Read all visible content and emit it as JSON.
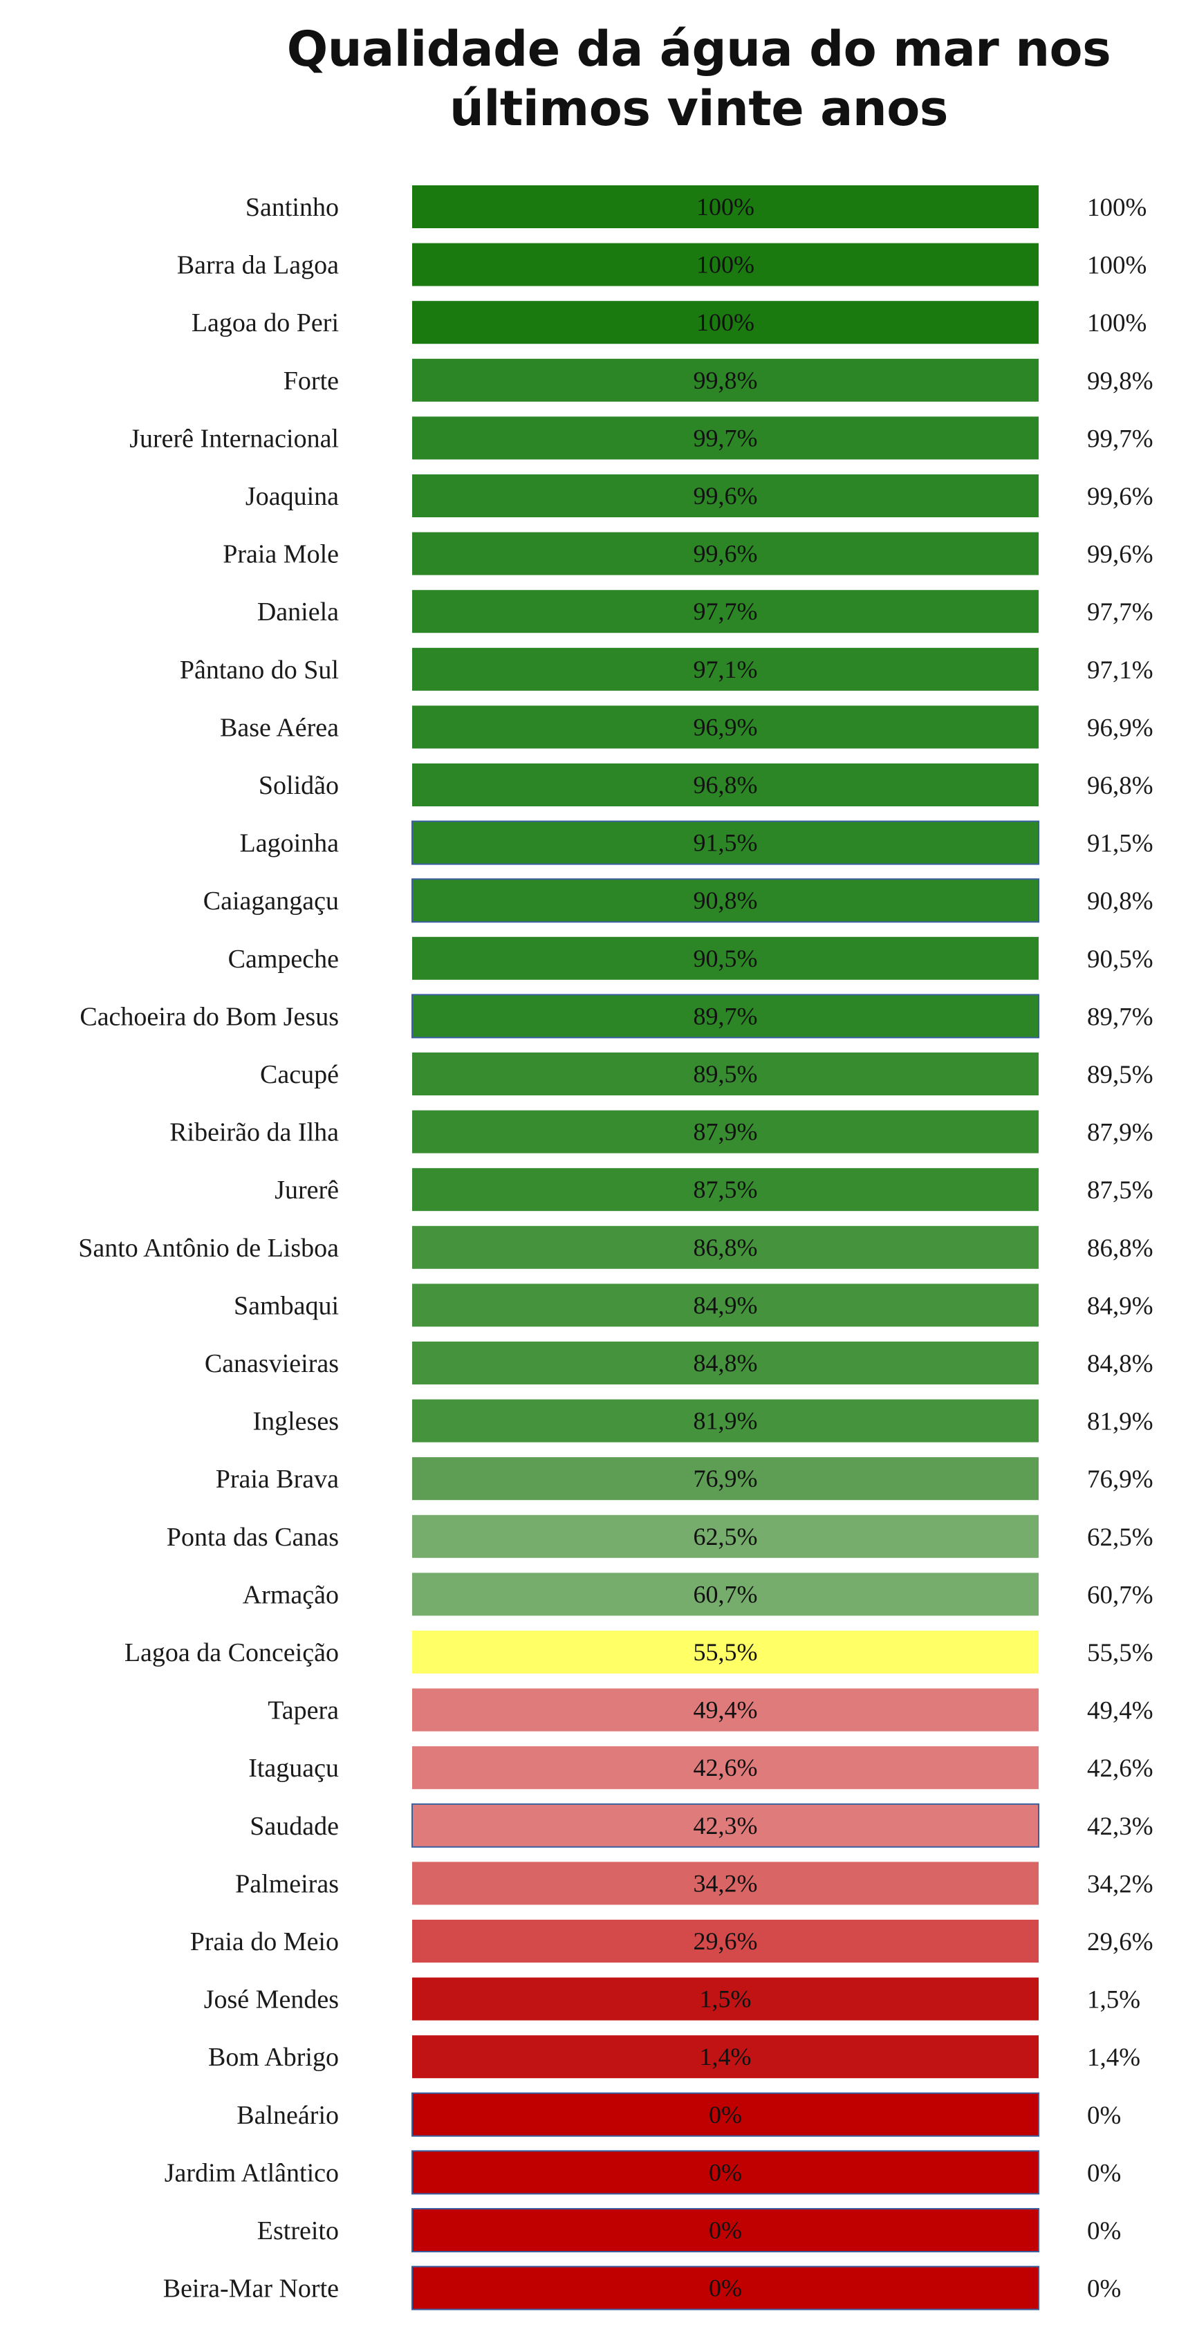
{
  "chart_data": {
    "type": "bar",
    "orientation": "horizontal",
    "title": [
      "Qualidade da água do mar nos",
      "últimos vinte anos"
    ],
    "categories": [
      "Santinho",
      "Barra da Lagoa",
      "Lagoa do Peri",
      "Forte",
      "Jurerê Internacional",
      "Joaquina",
      "Praia Mole",
      "Daniela",
      "Pântano do Sul",
      "Base Aérea",
      "Solidão",
      "Lagoinha",
      "Caiagangaçu",
      "Campeche",
      "Cachoeira do Bom Jesus",
      "Cacupé",
      "Ribeirão da Ilha",
      "Jurerê",
      "Santo Antônio de Lisboa",
      "Sambaqui",
      "Canasvieiras",
      "Ingleses",
      "Praia Brava",
      "Ponta das Canas",
      "Armação",
      "Lagoa da Conceição",
      "Tapera",
      "Itaguaçu",
      "Saudade",
      "Palmeiras",
      "Praia do Meio",
      "José Mendes",
      "Bom Abrigo",
      "Balneário",
      "Jardim Atlântico",
      "Estreito",
      "Beira-Mar Norte"
    ],
    "values": [
      100,
      100,
      100,
      99.8,
      99.7,
      99.6,
      99.6,
      97.7,
      97.1,
      96.9,
      96.8,
      91.5,
      90.8,
      90.5,
      89.7,
      89.5,
      87.9,
      87.5,
      86.8,
      84.9,
      84.8,
      81.9,
      76.9,
      62.5,
      60.7,
      55.5,
      49.4,
      42.6,
      42.3,
      34.2,
      29.6,
      1.5,
      1.4,
      0,
      0,
      0,
      0
    ],
    "bar_labels": [
      "100%",
      "100%",
      "100%",
      "99,8%",
      "99,7%",
      "99,6%",
      "99,6%",
      "97,7%",
      "97,1%",
      "96,9%",
      "96,8%",
      "91,5%",
      "90,8%",
      "90,5%",
      "89,7%",
      "89,5%",
      "87,9%",
      "87,5%",
      "86,8%",
      "84,9%",
      "84,8%",
      "81,9%",
      "76,9%",
      "62,5%",
      "60,7%",
      "55,5%",
      "49,4%",
      "42,6%",
      "42,3%",
      "34,2%",
      "29,6%",
      "1,5%",
      "1,4%",
      "0%",
      "0%",
      "0%",
      "0%"
    ],
    "colors": [
      "#1a7a10",
      "#1a7a10",
      "#1a7a10",
      "#2d8626",
      "#2d8626",
      "#2d8626",
      "#2d8626",
      "#2d8626",
      "#2d8626",
      "#2d8626",
      "#2d8626",
      "#2d8626",
      "#2d8626",
      "#2d8626",
      "#2d8626",
      "#388c30",
      "#388c30",
      "#388c30",
      "#45933c",
      "#45933c",
      "#45933c",
      "#45933c",
      "#5d9e54",
      "#76ad6c",
      "#76ad6c",
      "#ffff66",
      "#e07b7b",
      "#e07b7b",
      "#e07b7b",
      "#d96565",
      "#d44a4a",
      "#c11313",
      "#c11313",
      "#c00000",
      "#c00000",
      "#c00000",
      "#c00000"
    ],
    "bordered": [
      false,
      false,
      false,
      false,
      false,
      false,
      false,
      false,
      false,
      false,
      false,
      true,
      true,
      false,
      true,
      false,
      false,
      false,
      false,
      false,
      false,
      false,
      false,
      false,
      false,
      false,
      false,
      false,
      true,
      false,
      false,
      false,
      false,
      true,
      true,
      true,
      true
    ],
    "border_color": "#3a5fa0",
    "xlabel": "",
    "ylabel": "",
    "xlim": [
      0,
      100
    ],
    "grid": false,
    "legend": "none"
  }
}
